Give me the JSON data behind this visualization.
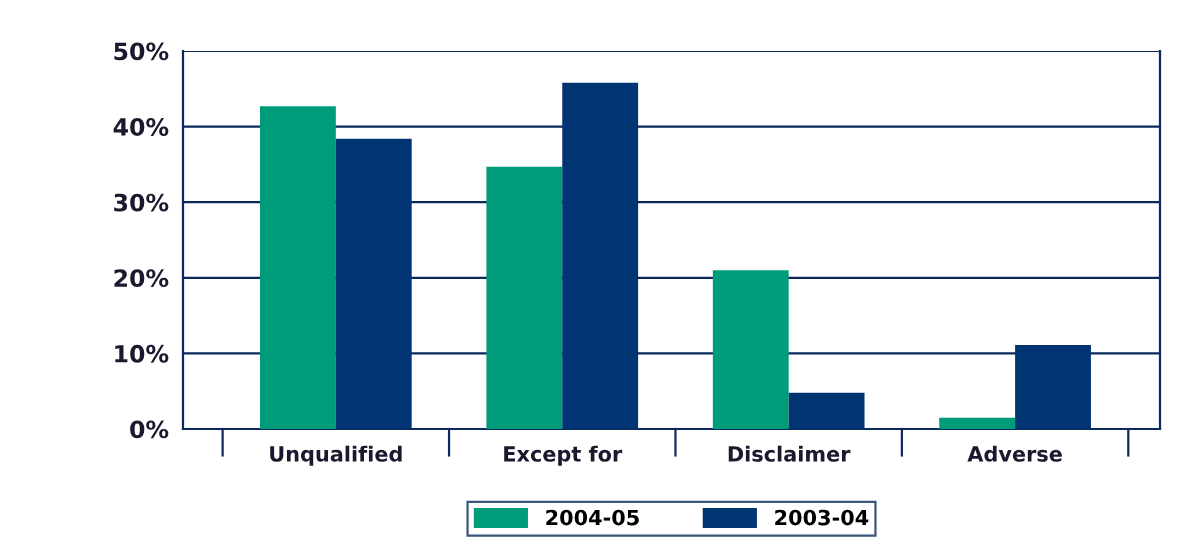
{
  "chart_data": {
    "type": "bar",
    "categories": [
      "Unqualified",
      "Except for",
      "Disclaimer",
      "Adverse"
    ],
    "series": [
      {
        "name": "2004-05",
        "color": "#009b7a",
        "values": [
          42.7,
          34.7,
          21.0,
          1.5
        ]
      },
      {
        "name": "2003-04",
        "color": "#003473",
        "values": [
          38.4,
          45.8,
          4.8,
          11.1
        ]
      }
    ],
    "ylim": [
      0,
      50
    ],
    "yticks": [
      {
        "value": 0,
        "label": "0%"
      },
      {
        "value": 10,
        "label": "10%"
      },
      {
        "value": 20,
        "label": "20%"
      },
      {
        "value": 30,
        "label": "30%"
      },
      {
        "value": 40,
        "label": "40%"
      },
      {
        "value": 50,
        "label": "50%"
      }
    ],
    "grid": "y",
    "legend": "bottom"
  }
}
